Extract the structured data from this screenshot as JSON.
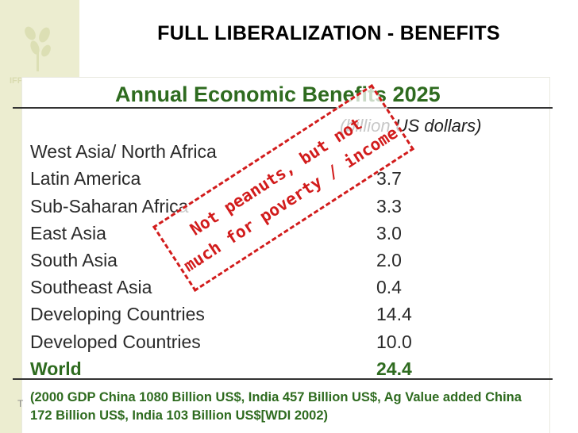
{
  "slide": {
    "title": "FULL LIBERALIZATION - BENEFITS",
    "logo_text": "IFPRI",
    "left_tick": "T"
  },
  "table": {
    "title": "Annual Economic Benefits 2025",
    "unit_note": "(billion US dollars)",
    "rows": [
      {
        "region": "West Asia/ North Africa",
        "value": ""
      },
      {
        "region": "Latin America",
        "value": "3.7"
      },
      {
        "region": "Sub-Saharan Africa",
        "value": "3.3"
      },
      {
        "region": "East Asia",
        "value": "3.0"
      },
      {
        "region": "South Asia",
        "value": "2.0"
      },
      {
        "region": "Southeast Asia",
        "value": "0.4"
      },
      {
        "region": "Developing Countries",
        "value": "14.4"
      },
      {
        "region": "Developed Countries",
        "value": "10.0"
      },
      {
        "region": "World",
        "value": "24.4"
      }
    ]
  },
  "stamp": {
    "line1": "Not peanuts, but not",
    "line2": "much for poverty / income",
    "color": "#d21c1c"
  },
  "footnote": "(2000 GDP China 1080 Billion US$, India 457 Billion US$, Ag Value added China 172 Billion US$, India 103 Billion US$[WDI 2002)"
}
